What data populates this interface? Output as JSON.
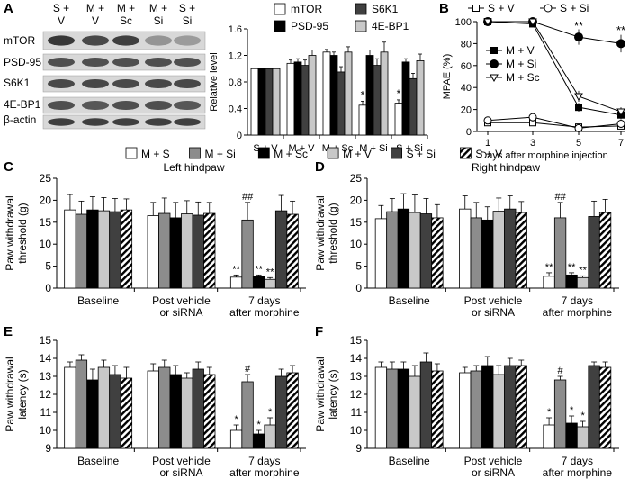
{
  "colors": {
    "white": "#ffffff",
    "gray": "#8c8c8c",
    "black": "#000000",
    "light": "#c8c8c8",
    "dark": "#404040",
    "hatch": "hatch"
  },
  "panel_labels": [
    "A",
    "B",
    "C",
    "D",
    "E",
    "F"
  ],
  "blot": {
    "lanes": [
      "S + V",
      "M + V",
      "M + Sc",
      "M + Si",
      "S + Si"
    ],
    "proteins": [
      "mTOR",
      "PSD-95",
      "S6K1",
      "4E-BP1",
      "β-actin"
    ]
  },
  "chart_data": [
    {
      "id": "A-bar",
      "type": "bar",
      "categories": [
        "S + V",
        "M + V",
        "M + Sc",
        "M + Si",
        "S + Si"
      ],
      "ylabel": "Relative level",
      "ylim": [
        0,
        1.6
      ],
      "yticks": [
        "0",
        "0.4",
        "0.8",
        "1.2",
        "1.6"
      ],
      "series": [
        {
          "name": "mTOR",
          "color": "white",
          "values": [
            1.0,
            1.08,
            1.25,
            0.45,
            0.48
          ],
          "errors": [
            0,
            0.05,
            0.04,
            0.06,
            0.05
          ],
          "stars": [
            "",
            "",
            "",
            "*",
            "*"
          ]
        },
        {
          "name": "PSD-95",
          "color": "black",
          "values": [
            1.0,
            1.1,
            1.2,
            1.2,
            1.1
          ],
          "errors": [
            0,
            0.05,
            0.05,
            0.08,
            0.05
          ],
          "stars": [
            "",
            "",
            "",
            "",
            ""
          ]
        },
        {
          "name": "S6K1",
          "color": "dark",
          "values": [
            1.0,
            1.05,
            0.95,
            1.05,
            0.85
          ],
          "errors": [
            0,
            0.08,
            0.08,
            0.1,
            0.08
          ],
          "stars": [
            "",
            "",
            "",
            "",
            ""
          ]
        },
        {
          "name": "4E-BP1",
          "color": "light",
          "values": [
            1.0,
            1.2,
            1.25,
            1.25,
            1.12
          ],
          "errors": [
            0,
            0.08,
            0.08,
            0.15,
            0.1
          ],
          "stars": [
            "",
            "",
            "",
            "",
            ""
          ]
        }
      ]
    },
    {
      "id": "B",
      "type": "line",
      "x": [
        1,
        3,
        5,
        7
      ],
      "xticks": [
        "1",
        "3",
        "5",
        "7"
      ],
      "xlabel": "Days after morphine injection",
      "ylabel": "MPAE (%)",
      "ylim": [
        0,
        100
      ],
      "yticks": [
        "0",
        "20",
        "40",
        "60",
        "80",
        "100"
      ],
      "annotations": [
        {
          "x": 5,
          "y": 96,
          "text": "**"
        },
        {
          "x": 7,
          "y": 92,
          "text": "**"
        }
      ],
      "series": [
        {
          "name": "S + V",
          "marker": "square-open",
          "values": [
            8,
            8,
            4,
            5
          ],
          "errors": [
            3,
            3,
            3,
            3
          ]
        },
        {
          "name": "S + Si",
          "marker": "circle-open",
          "values": [
            10,
            13,
            3,
            7
          ],
          "errors": [
            3,
            4,
            2,
            3
          ]
        },
        {
          "name": "M + V",
          "marker": "square-filled",
          "values": [
            100,
            98,
            22,
            15
          ],
          "errors": [
            1,
            2,
            4,
            4
          ]
        },
        {
          "name": "M + Si",
          "marker": "circle-filled",
          "values": [
            100,
            100,
            86,
            80
          ],
          "errors": [
            1,
            1,
            7,
            8
          ]
        },
        {
          "name": "M + Sc",
          "marker": "triangle-open",
          "values": [
            100,
            100,
            32,
            18
          ],
          "errors": [
            1,
            1,
            5,
            4
          ]
        }
      ]
    },
    {
      "id": "C",
      "type": "bar",
      "title": "Left hindpaw",
      "ylabel": "Paw withdrawal threshold (g)",
      "ylabel_lines": [
        "Paw withdrawal",
        "threshold (g)"
      ],
      "ylim": [
        0,
        25
      ],
      "yticks": [
        "0",
        "5",
        "10",
        "15",
        "20",
        "25"
      ],
      "categories": [
        "Baseline",
        "Post vehicle or siRNA",
        "7 days after morphine"
      ],
      "category_lines": [
        [
          "Baseline"
        ],
        [
          "Post vehicle",
          "or siRNA"
        ],
        [
          "7 days",
          "after morphine"
        ]
      ],
      "series_names": [
        "M + S",
        "M + Si",
        "M + Sc",
        "M + V",
        "S + Si",
        "S + V"
      ],
      "values": [
        [
          17.8,
          16.8,
          17.8,
          17.6,
          17.4,
          17.8
        ],
        [
          16.5,
          17.0,
          16.0,
          16.9,
          16.6,
          17.0
        ],
        [
          2.5,
          15.5,
          2.6,
          2.0,
          17.6,
          16.8
        ]
      ],
      "errors": [
        [
          3.5,
          3,
          3,
          3,
          3,
          2.5
        ],
        [
          3,
          3.5,
          3.5,
          3,
          3,
          2.5
        ],
        [
          0.5,
          4,
          0.4,
          0.4,
          3.5,
          3
        ]
      ],
      "marks": [
        [
          "",
          "",
          "",
          "",
          "",
          ""
        ],
        [
          "",
          "",
          "",
          "",
          "",
          ""
        ],
        [
          "**",
          "##",
          "**",
          "**",
          "",
          ""
        ]
      ]
    },
    {
      "id": "D",
      "type": "bar",
      "title": "Right hindpaw",
      "ylabel": "Paw withdrawal threshold (g)",
      "ylabel_lines": [
        "Paw withdrawal",
        "threshold (g)"
      ],
      "ylim": [
        0,
        25
      ],
      "yticks": [
        "0",
        "5",
        "10",
        "15",
        "20",
        "25"
      ],
      "categories": [
        "Baseline",
        "Post vehicle or siRNA",
        "7 days after morphine"
      ],
      "category_lines": [
        [
          "Baseline"
        ],
        [
          "Post vehicle",
          "or siRNA"
        ],
        [
          "7 days",
          "after morphine"
        ]
      ],
      "series_names": [
        "M + S",
        "M + Si",
        "M + Sc",
        "M + V",
        "S + Si",
        "S + V"
      ],
      "values": [
        [
          15.8,
          17.4,
          18.0,
          17.2,
          16.9,
          16.0
        ],
        [
          18.0,
          16.0,
          15.5,
          17.5,
          18.0,
          17.2
        ],
        [
          2.7,
          16.0,
          3.0,
          2.4,
          16.3,
          17.2
        ]
      ],
      "errors": [
        [
          3,
          3,
          3.5,
          4,
          3.5,
          3
        ],
        [
          3,
          3.5,
          3,
          3,
          3,
          2.5
        ],
        [
          0.8,
          3.5,
          0.5,
          0.4,
          3.5,
          3
        ]
      ],
      "marks": [
        [
          "",
          "",
          "",
          "",
          "",
          ""
        ],
        [
          "",
          "",
          "",
          "",
          "",
          ""
        ],
        [
          "**",
          "##",
          "**",
          "**",
          "",
          ""
        ]
      ]
    },
    {
      "id": "E",
      "type": "bar",
      "ylabel": "Paw withdrawal latency (s)",
      "ylabel_lines": [
        "Paw withdrawal",
        "latency (s)"
      ],
      "ylim": [
        9,
        15
      ],
      "yticks": [
        "9",
        "10",
        "11",
        "12",
        "13",
        "14",
        "15"
      ],
      "categories": [
        "Baseline",
        "Post vehicle or siRNA",
        "7 days after morphine"
      ],
      "category_lines": [
        [
          "Baseline"
        ],
        [
          "Post vehicle",
          "or siRNA"
        ],
        [
          "7 days",
          "after morphine"
        ]
      ],
      "series_names": [
        "M + S",
        "M + Si",
        "M + Sc",
        "M + V",
        "S + Si",
        "S + V"
      ],
      "values": [
        [
          13.5,
          13.9,
          12.8,
          13.5,
          13.1,
          12.9
        ],
        [
          13.3,
          13.5,
          13.1,
          12.9,
          13.4,
          13.1
        ],
        [
          10.0,
          12.7,
          9.8,
          10.3,
          13.0,
          13.2
        ]
      ],
      "errors": [
        [
          0.3,
          0.3,
          0.6,
          0.4,
          0.5,
          0.6
        ],
        [
          0.4,
          0.4,
          0.5,
          0.3,
          0.4,
          0.4
        ],
        [
          0.3,
          0.4,
          0.2,
          0.4,
          0.4,
          0.4
        ]
      ],
      "marks": [
        [
          "",
          "",
          "",
          "",
          "",
          ""
        ],
        [
          "",
          "",
          "",
          "",
          "",
          ""
        ],
        [
          "*",
          "#",
          "*",
          "*",
          "",
          ""
        ]
      ]
    },
    {
      "id": "F",
      "type": "bar",
      "ylabel": "Paw withdrawal latency (s)",
      "ylabel_lines": [
        "Paw withdrawal",
        "latency (s)"
      ],
      "ylim": [
        9,
        15
      ],
      "yticks": [
        "9",
        "10",
        "11",
        "12",
        "13",
        "14",
        "15"
      ],
      "categories": [
        "Baseline",
        "Post vehicle or siRNA",
        "7 days after morphine"
      ],
      "category_lines": [
        [
          "Baseline"
        ],
        [
          "Post vehicle",
          "or siRNA"
        ],
        [
          "7 days",
          "after morphine"
        ]
      ],
      "series_names": [
        "M + S",
        "M + Si",
        "M + Sc",
        "M + V",
        "S + Si",
        "S + V"
      ],
      "values": [
        [
          13.5,
          13.4,
          13.4,
          13.0,
          13.8,
          13.3
        ],
        [
          13.2,
          13.3,
          13.6,
          13.1,
          13.6,
          13.6
        ],
        [
          10.3,
          12.8,
          10.4,
          10.2,
          13.6,
          13.5
        ]
      ],
      "errors": [
        [
          0.3,
          0.4,
          0.4,
          0.6,
          0.5,
          0.4
        ],
        [
          0.3,
          0.3,
          0.5,
          0.5,
          0.4,
          0.3
        ],
        [
          0.4,
          0.2,
          0.4,
          0.3,
          0.2,
          0.3
        ]
      ],
      "marks": [
        [
          "",
          "",
          "",
          "",
          "",
          ""
        ],
        [
          "",
          "",
          "",
          "",
          "",
          ""
        ],
        [
          "*",
          "#",
          "*",
          "*",
          "",
          ""
        ]
      ]
    }
  ],
  "bar_legend": [
    {
      "name": "M + S",
      "color": "white"
    },
    {
      "name": "M + Si",
      "color": "gray"
    },
    {
      "name": "M + Sc",
      "color": "black"
    },
    {
      "name": "M + V",
      "color": "light"
    },
    {
      "name": "S + Si",
      "color": "dark"
    },
    {
      "name": "S + V",
      "color": "hatch"
    }
  ]
}
